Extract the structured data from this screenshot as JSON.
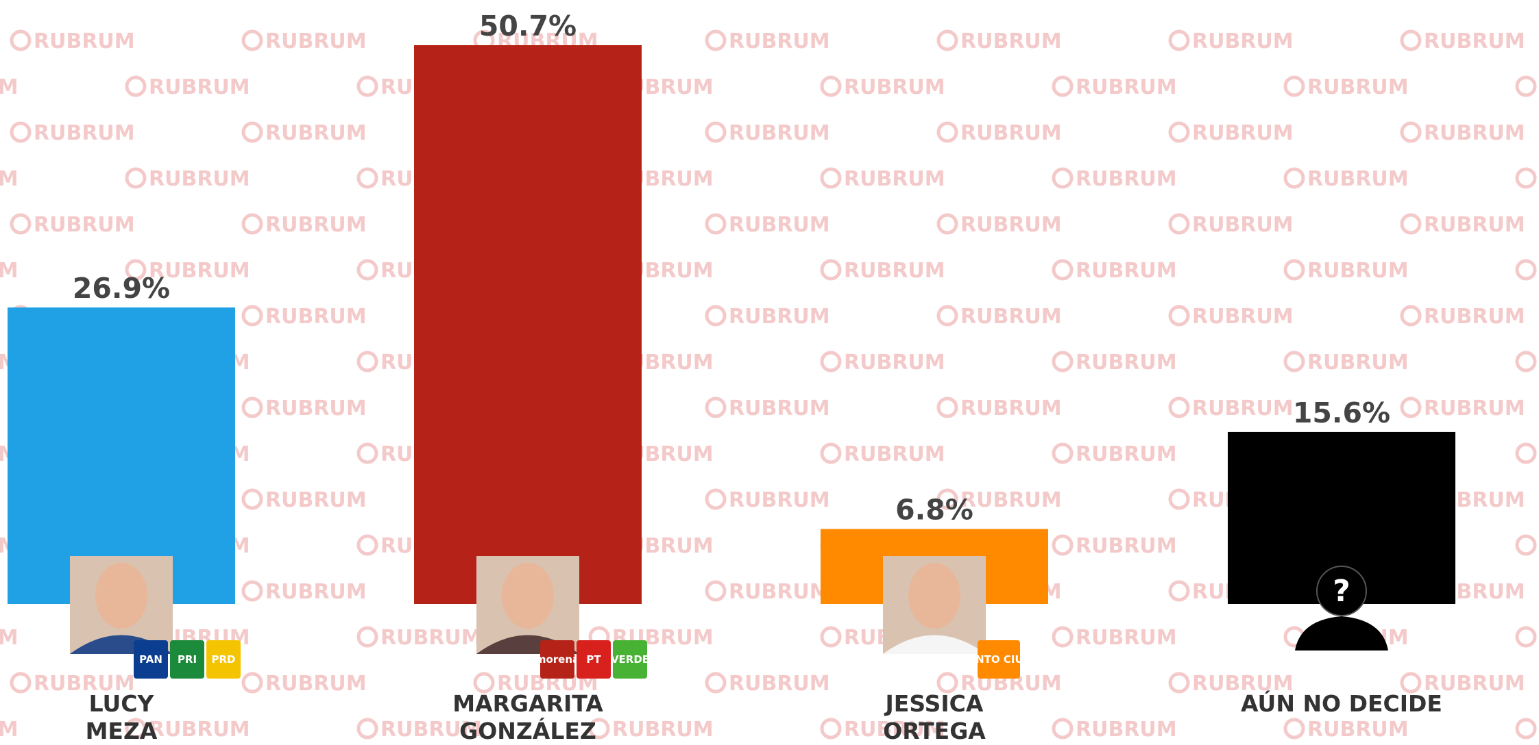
{
  "chart_data": {
    "type": "bar",
    "categories": [
      "LUCY MEZA",
      "MARGARITA GONZÁLEZ",
      "JESSICA ORTEGA",
      "AÚN NO DECIDE"
    ],
    "values": [
      26.9,
      50.7,
      6.8,
      15.6
    ],
    "value_labels": [
      "26.9%",
      "50.7%",
      "6.8%",
      "15.6%"
    ],
    "colors": [
      "#20a1e6",
      "#b52218",
      "#ff8a00",
      "#000000"
    ],
    "logos": [
      [
        "PAN",
        "PRI",
        "PRD"
      ],
      [
        "morena",
        "PT",
        "VERDE"
      ],
      [
        "MOVIMIENTO CIUDADANO"
      ],
      []
    ],
    "unknown_icon": "?",
    "watermark": "RUBRUM"
  }
}
